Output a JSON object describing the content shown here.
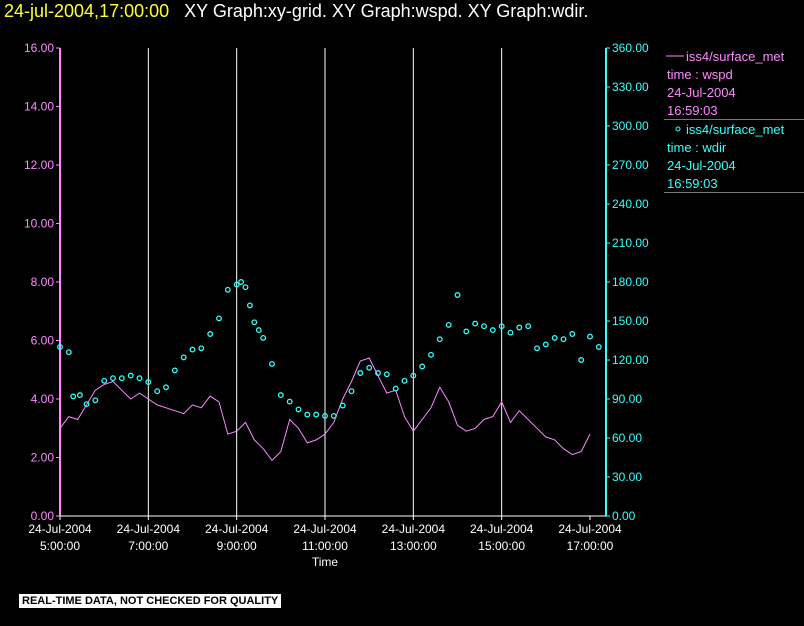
{
  "header": {
    "timestamp": "24-jul-2004,17:00:00",
    "graphs": "XY Graph:xy-grid.  XY Graph:wspd.  XY Graph:wdir."
  },
  "notice": "REAL-TIME DATA, NOT CHECKED FOR QUALITY",
  "legend": [
    {
      "line1": "iss4/surface_met",
      "line2": "time : wspd",
      "line3": "24-Jul-2004",
      "line4": "16:59:03",
      "color": "#ff88ff",
      "marker": "line"
    },
    {
      "line1": "iss4/surface_met",
      "line2": "time : wdir",
      "line3": "24-Jul-2004",
      "line4": "16:59:03",
      "color": "#33ffff",
      "marker": "circle"
    }
  ],
  "colors": {
    "wspd": "#ff88ff",
    "wdir": "#33ffff",
    "grid": "#ffffff",
    "axis_text": "#ffffff"
  },
  "chart_data": {
    "type": "line",
    "xlabel": "Time",
    "xlim": [
      5.0,
      17.4
    ],
    "x_ticks": [
      {
        "x": 5,
        "date": "24-Jul-2004",
        "time": "5:00:00"
      },
      {
        "x": 7,
        "date": "24-Jul-2004",
        "time": "7:00:00"
      },
      {
        "x": 9,
        "date": "24-Jul-2004",
        "time": "9:00:00"
      },
      {
        "x": 11,
        "date": "24-Jul-2004",
        "time": "11:00:00"
      },
      {
        "x": 13,
        "date": "24-Jul-2004",
        "time": "13:00:00"
      },
      {
        "x": 15,
        "date": "24-Jul-2004",
        "time": "15:00:00"
      },
      {
        "x": 17,
        "date": "24-Jul-2004",
        "time": "17:00:00"
      }
    ],
    "vertical_gridlines_at": [
      7,
      9,
      11,
      13,
      15
    ],
    "y_left": {
      "lim": [
        0,
        16
      ],
      "ticks": [
        "0.00",
        "2.00",
        "4.00",
        "6.00",
        "8.00",
        "10.00",
        "12.00",
        "14.00",
        "16.00"
      ]
    },
    "y_right": {
      "lim": [
        0,
        360
      ],
      "ticks": [
        "0.00",
        "30.00",
        "60.00",
        "90.00",
        "120.00",
        "150.00",
        "180.00",
        "210.00",
        "240.00",
        "270.00",
        "300.00",
        "330.00",
        "360.00"
      ]
    },
    "series": [
      {
        "name": "iss4/surface_met time : wspd",
        "axis": "left",
        "style": "line",
        "x": [
          5.0,
          5.2,
          5.4,
          5.6,
          5.8,
          6.0,
          6.2,
          6.4,
          6.6,
          6.8,
          7.0,
          7.2,
          7.4,
          7.6,
          7.8,
          8.0,
          8.2,
          8.4,
          8.6,
          8.8,
          9.0,
          9.2,
          9.4,
          9.6,
          9.8,
          10.0,
          10.2,
          10.4,
          10.6,
          10.8,
          11.0,
          11.2,
          11.4,
          11.6,
          11.8,
          12.0,
          12.2,
          12.4,
          12.6,
          12.8,
          13.0,
          13.2,
          13.4,
          13.6,
          13.8,
          14.0,
          14.2,
          14.4,
          14.6,
          14.8,
          15.0,
          15.2,
          15.4,
          15.6,
          15.8,
          16.0,
          16.2,
          16.4,
          16.6,
          16.8,
          17.0
        ],
        "y": [
          3.0,
          3.4,
          3.3,
          3.8,
          4.3,
          4.5,
          4.6,
          4.3,
          4.0,
          4.2,
          4.0,
          3.8,
          3.7,
          3.6,
          3.5,
          3.8,
          3.7,
          4.1,
          3.9,
          2.8,
          2.9,
          3.2,
          2.6,
          2.3,
          1.9,
          2.2,
          3.3,
          3.0,
          2.5,
          2.6,
          2.8,
          3.2,
          4.0,
          4.6,
          5.3,
          5.4,
          4.8,
          4.2,
          4.3,
          3.4,
          2.9,
          3.3,
          3.7,
          4.4,
          3.9,
          3.1,
          2.9,
          3.0,
          3.3,
          3.4,
          3.9,
          3.2,
          3.6,
          3.3,
          3.0,
          2.7,
          2.6,
          2.3,
          2.1,
          2.2,
          2.8
        ]
      },
      {
        "name": "iss4/surface_met time : wdir",
        "axis": "right",
        "style": "circles",
        "x": [
          5.0,
          5.2,
          5.3,
          5.45,
          5.6,
          5.8,
          6.0,
          6.2,
          6.4,
          6.6,
          6.8,
          7.0,
          7.2,
          7.4,
          7.6,
          7.8,
          8.0,
          8.2,
          8.4,
          8.6,
          8.8,
          9.0,
          9.1,
          9.2,
          9.3,
          9.4,
          9.5,
          9.6,
          9.8,
          10.0,
          10.2,
          10.4,
          10.6,
          10.8,
          11.0,
          11.2,
          11.4,
          11.6,
          11.8,
          12.0,
          12.2,
          12.4,
          12.6,
          12.8,
          13.0,
          13.2,
          13.4,
          13.6,
          13.8,
          14.0,
          14.2,
          14.4,
          14.6,
          14.8,
          15.0,
          15.2,
          15.4,
          15.6,
          15.8,
          16.0,
          16.2,
          16.4,
          16.6,
          16.8,
          17.0,
          17.2
        ],
        "y": [
          130,
          126,
          92,
          93,
          86,
          89,
          104,
          106,
          106,
          108,
          106,
          103,
          96,
          99,
          112,
          122,
          128,
          129,
          140,
          152,
          174,
          178,
          180,
          176,
          162,
          149,
          143,
          137,
          117,
          93,
          88,
          82,
          78,
          78,
          77,
          77,
          85,
          96,
          110,
          114,
          110,
          109,
          98,
          104,
          108,
          115,
          124,
          136,
          147,
          170,
          142,
          148,
          146,
          143,
          146,
          141,
          145,
          146,
          129,
          132,
          137,
          136,
          140,
          120,
          138,
          130
        ]
      }
    ]
  }
}
